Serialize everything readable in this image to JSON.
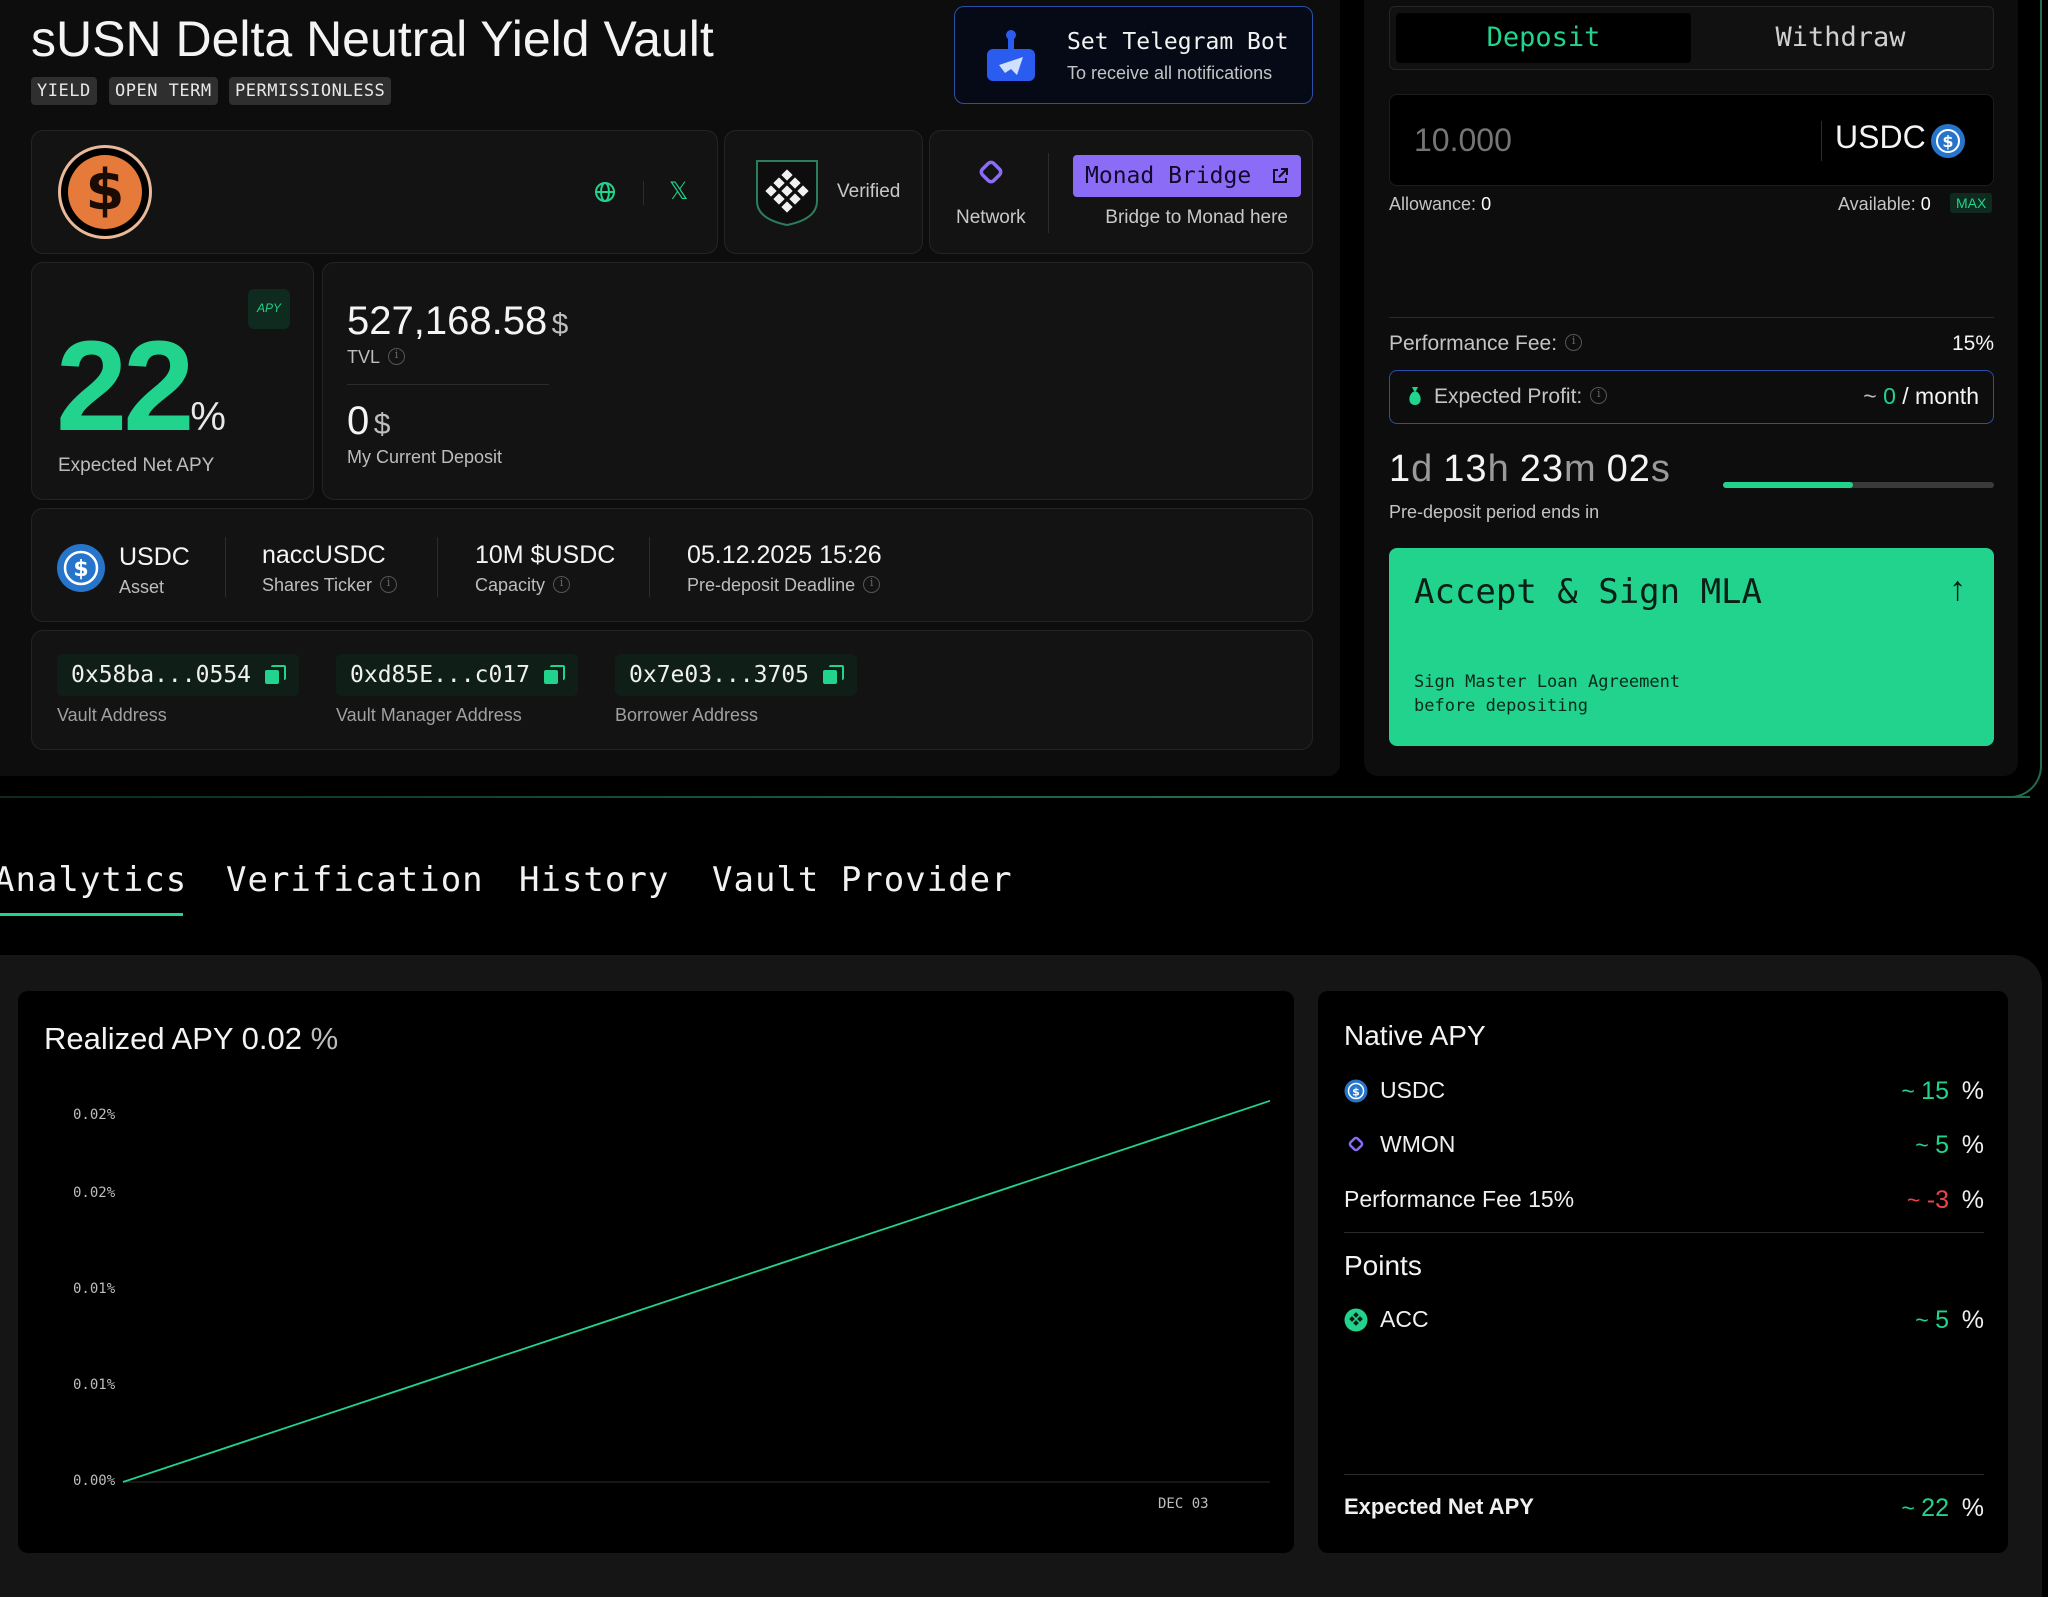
{
  "vault": {
    "title": "sUSN Delta Neutral Yield Vault",
    "tags": [
      "YIELD",
      "OPEN TERM",
      "PERMISSIONLESS"
    ]
  },
  "telegram": {
    "title": "Set Telegram Bot",
    "subtitle": "To receive all notifications"
  },
  "info_bar": {
    "verified_label": "Verified",
    "network_label": "Network",
    "bridge_button": "Monad Bridge",
    "bridge_caption": "Bridge to Monad here"
  },
  "apy_card": {
    "value": "22",
    "unit": "%",
    "label": "Expected Net APY",
    "badge": "APY"
  },
  "tvl": {
    "value": "527,168.58",
    "unit": "$",
    "label": "TVL"
  },
  "my_deposit": {
    "value": "0",
    "unit": "$",
    "label": "My Current Deposit"
  },
  "asset_row": {
    "asset_value": "USDC",
    "asset_label": "Asset",
    "ticker_value": "naccUSDC",
    "ticker_label": "Shares Ticker",
    "capacity_value": "10M $USDC",
    "capacity_label": "Capacity",
    "deadline_value": "05.12.2025 15:26",
    "deadline_label": "Pre-deposit Deadline"
  },
  "addresses": [
    {
      "value": "0x58ba...0554",
      "label": "Vault Address"
    },
    {
      "value": "0xd85E...c017",
      "label": "Vault Manager Address"
    },
    {
      "value": "0x7e03...3705",
      "label": "Borrower Address"
    }
  ],
  "deposit_panel": {
    "tab_deposit": "Deposit",
    "tab_withdraw": "Withdraw",
    "amount_placeholder": "10.000",
    "token": "USDC",
    "allowance_label": "Allowance:",
    "allowance_value": "0",
    "available_label": "Available:",
    "available_value": "0",
    "max_label": "MAX",
    "fee_label": "Performance Fee:",
    "fee_value": "15%",
    "profit_label": "Expected Profit:",
    "profit_prefix": "~",
    "profit_value": "0",
    "profit_suffix": "/ month",
    "countdown": {
      "d": "1",
      "d_unit": "d",
      "h": "13",
      "h_unit": "h",
      "m": "23",
      "m_unit": "m",
      "s": "02",
      "s_unit": "s"
    },
    "countdown_label": "Pre-deposit period ends in",
    "countdown_progress": 0.48,
    "cta_title": "Accept & Sign MLA",
    "cta_subtitle_1": "Sign Master Loan Agreement",
    "cta_subtitle_2": "before depositing"
  },
  "tabs": [
    "Analytics",
    "Verification",
    "History",
    "Vault Provider"
  ],
  "realized": {
    "title": "Realized APY",
    "value": "0.02",
    "unit": "%"
  },
  "chart_data": {
    "type": "line",
    "x": [
      "",
      "DEC 03"
    ],
    "y_tick_labels": [
      "0.00%",
      "0.01%",
      "0.01%",
      "0.02%",
      "0.02%"
    ],
    "series": [
      {
        "values": [
          0.0,
          0.0195
        ]
      }
    ],
    "ylim": [
      0,
      0.02
    ],
    "color": "#22d38e",
    "grid": false
  },
  "native_apy": {
    "title": "Native APY",
    "rows": [
      {
        "name": "USDC",
        "prefix": "~",
        "value": "15",
        "unit": "%"
      },
      {
        "name": "WMON",
        "prefix": "~",
        "value": "5",
        "unit": "%"
      },
      {
        "name": "Performance Fee 15%",
        "prefix": "~",
        "value": "-3",
        "unit": "%"
      }
    ],
    "points_title": "Points",
    "points": [
      {
        "name": "ACC",
        "prefix": "~",
        "value": "5",
        "unit": "%"
      }
    ],
    "net_label": "Expected Net APY",
    "net_prefix": "~",
    "net_value": "22",
    "net_unit": "%"
  },
  "colors": {
    "accent": "#22d38e",
    "purple": "#8b6cf6",
    "blue": "#2a5cf0",
    "negative": "#e84646"
  }
}
